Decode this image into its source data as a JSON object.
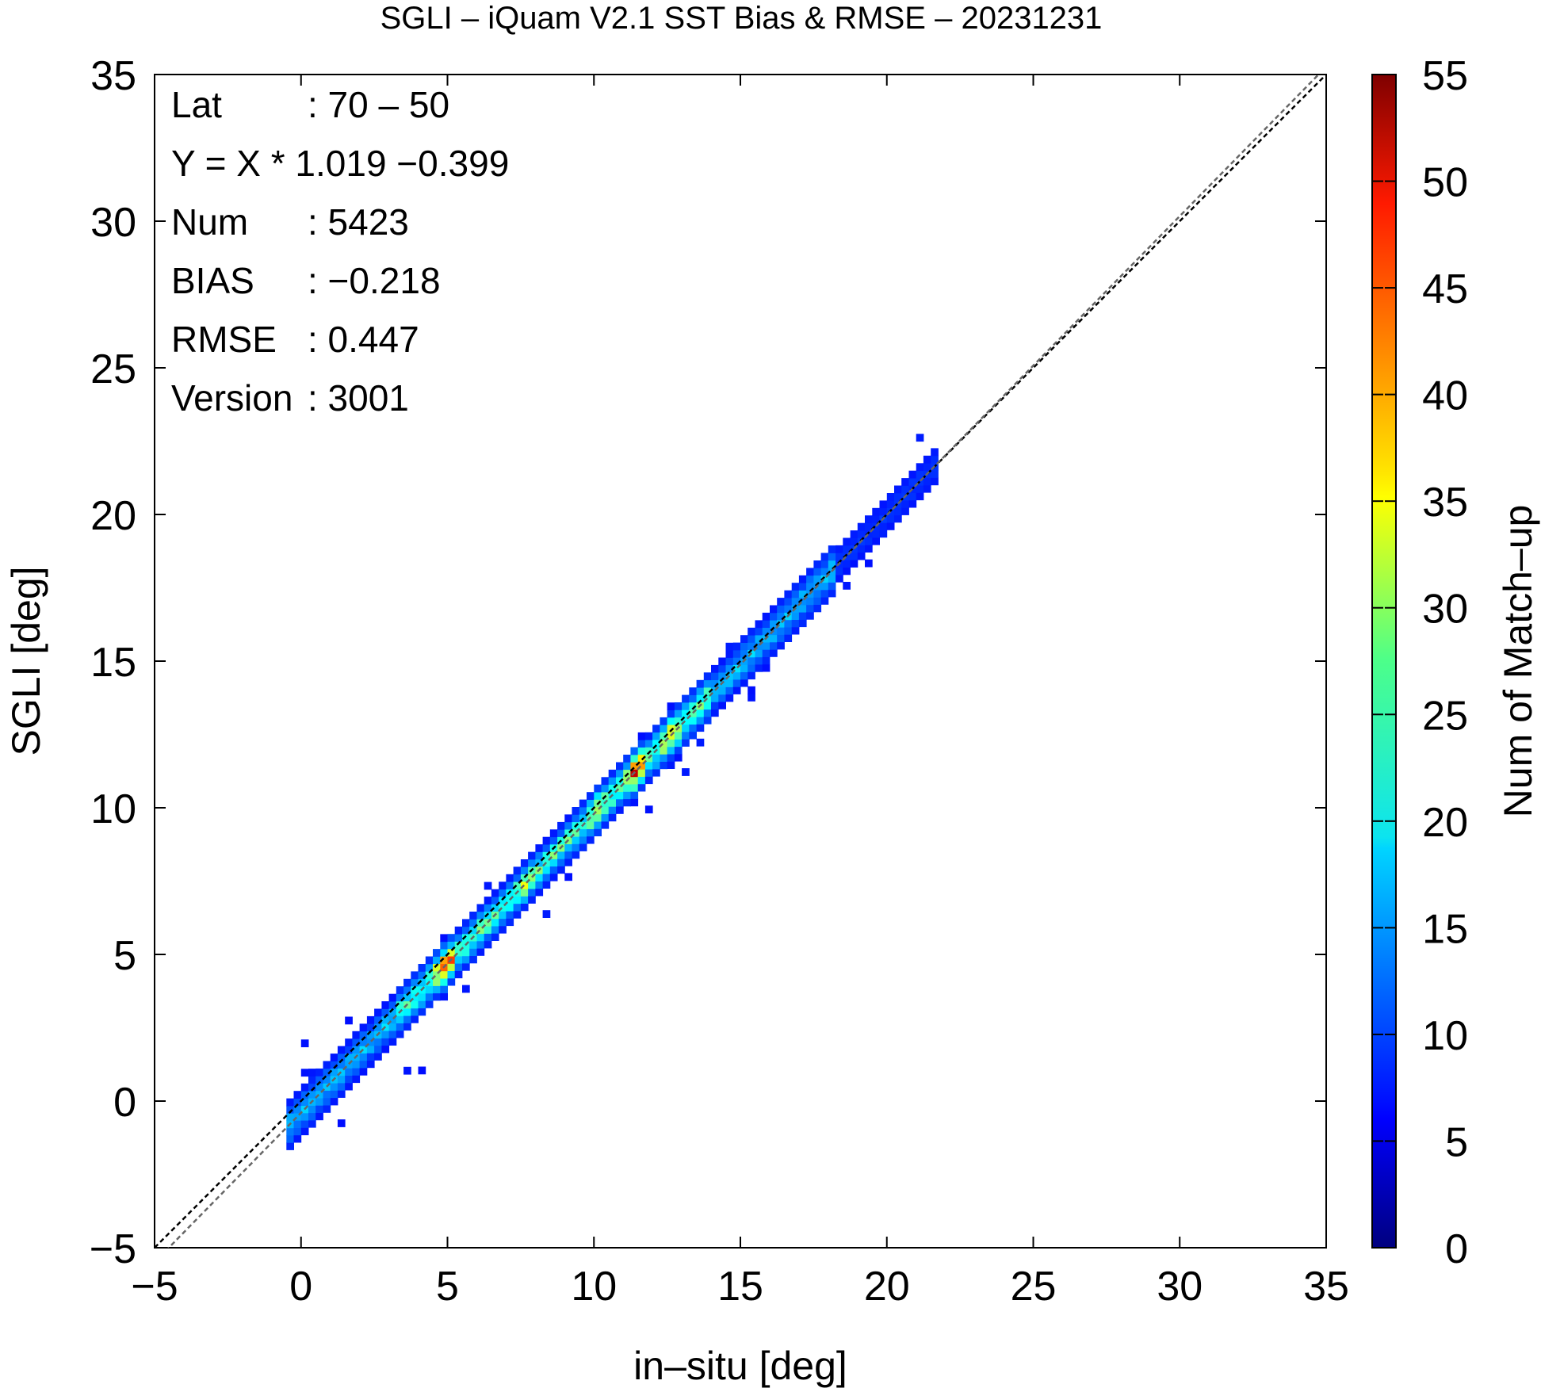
{
  "chart_data": {
    "type": "heatmap",
    "title": "SGLI – iQuam V2.1 SST Bias & RMSE  – 20231231",
    "xlabel": "in–situ [deg]",
    "ylabel": "SGLI [deg]",
    "xlim": [
      -5,
      35
    ],
    "ylim": [
      -5,
      35
    ],
    "x_ticks": [
      "−5",
      "0",
      "5",
      "10",
      "15",
      "20",
      "25",
      "30",
      "35"
    ],
    "y_ticks": [
      "−5",
      "0",
      "5",
      "10",
      "15",
      "20",
      "25",
      "30",
      "35"
    ],
    "colorbar": {
      "label": "Num of Match–up",
      "range": [
        0,
        55
      ],
      "ticks": [
        "0",
        "5",
        "10",
        "15",
        "20",
        "25",
        "30",
        "35",
        "40",
        "45",
        "50",
        "55"
      ],
      "colormap": "jet"
    },
    "stats": [
      {
        "key": "Lat",
        "value": ": 70 – 50"
      },
      {
        "key": "Y = X * 1.019 −0.399",
        "value": ""
      },
      {
        "key": "Num",
        "value": ": 5423"
      },
      {
        "key": "BIAS",
        "value": ": −0.218"
      },
      {
        "key": "RMSE",
        "value": ": 0.447"
      },
      {
        "key": "Version",
        "value": ": 3001"
      }
    ],
    "reference_lines": [
      {
        "label": "1:1",
        "slope": 1,
        "intercept": 0,
        "color": "#000000",
        "style": "dashed"
      },
      {
        "label": "regression",
        "slope": 1.019,
        "intercept": -0.399,
        "color": "#666666",
        "style": "dashed"
      }
    ],
    "density_ridge": {
      "x_range": [
        -0.5,
        21.5
      ],
      "slope": 1.019,
      "intercept": -0.399,
      "peak_count": 53
    },
    "grid": false
  }
}
